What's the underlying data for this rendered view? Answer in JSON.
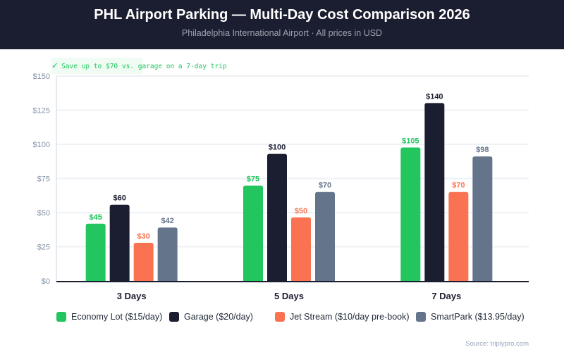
{
  "header": {
    "title": "PHL Airport Parking — Multi-Day Cost Comparison 2026",
    "subtitle": "Philadelphia International Airport · All prices in USD"
  },
  "callout": {
    "icon": "check-icon",
    "text": "Save up to $70 vs. garage on a 7-day trip",
    "color": "#22c55e"
  },
  "source": "Source: triplypro.com",
  "chart_data": {
    "type": "bar",
    "title": "PHL Airport Parking — Multi-Day Cost Comparison 2026",
    "subtitle": "Philadelphia International Airport · All prices in USD",
    "xlabel": "",
    "ylabel": "",
    "categories": [
      "3 Days",
      "5 Days",
      "7 Days"
    ],
    "ylim": [
      0,
      150
    ],
    "yticks": [
      0,
      25,
      50,
      75,
      100,
      125,
      150
    ],
    "ytick_labels": [
      "$0",
      "$25",
      "$50",
      "$75",
      "$100",
      "$125",
      "$150"
    ],
    "grid": true,
    "legend_position": "bottom",
    "series": [
      {
        "name": "Economy Lot ($15/day)",
        "color": "#22c55e",
        "values": [
          45,
          75,
          105
        ],
        "labels": [
          "$45",
          "$75",
          "$105"
        ]
      },
      {
        "name": "Garage ($20/day)",
        "color": "#1b1d30",
        "values": [
          60,
          100,
          140
        ],
        "labels": [
          "$60",
          "$100",
          "$140"
        ]
      },
      {
        "name": "Jet Stream ($10/day pre-book)",
        "color": "#f97352",
        "values": [
          30,
          50,
          70
        ],
        "labels": [
          "$30",
          "$50",
          "$70"
        ]
      },
      {
        "name": "SmartPark ($13.95/day)",
        "color": "#64748b",
        "values": [
          42,
          70,
          98
        ],
        "labels": [
          "$42",
          "$70",
          "$98"
        ]
      }
    ]
  }
}
